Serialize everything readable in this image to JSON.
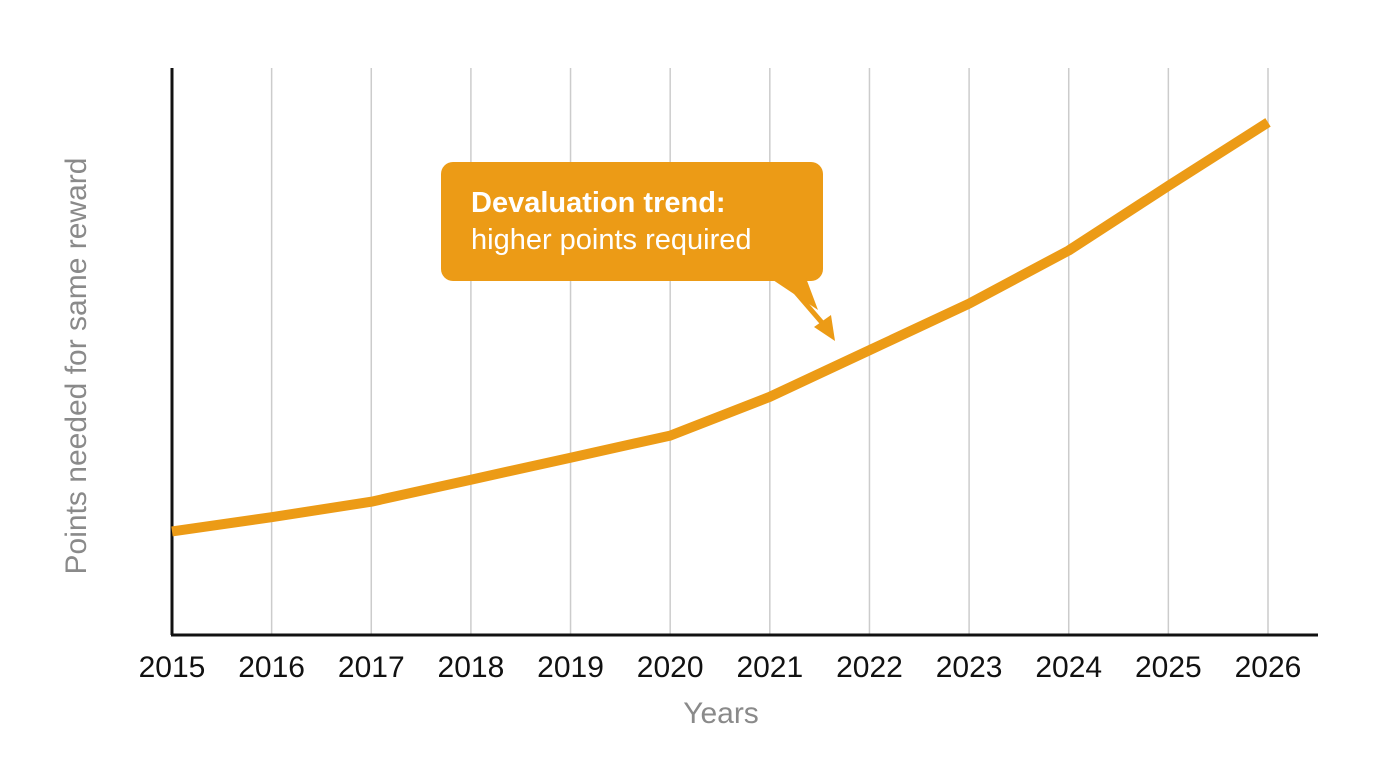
{
  "chart_data": {
    "type": "line",
    "title": "",
    "xlabel": "Years",
    "ylabel": "Points needed for same reward",
    "x": [
      2015,
      2016,
      2017,
      2018,
      2019,
      2020,
      2021,
      2022,
      2023,
      2024,
      2025,
      2026
    ],
    "series": [
      {
        "values": [
          100,
          111,
          123,
          140,
          157,
          174,
          204,
          240,
          276,
          317,
          367,
          416
        ]
      }
    ],
    "ylim": [
      20,
      458
    ],
    "y_ticks_shown": false,
    "grid": "vertical",
    "colors": {
      "line": "#ec9b16",
      "callout": "#ec9b16",
      "grid": "#cccccc",
      "axis": "#111111"
    },
    "annotation": {
      "title": "Devaluation trend:",
      "text": "higher points required",
      "points_to_x": 2021.65
    }
  }
}
